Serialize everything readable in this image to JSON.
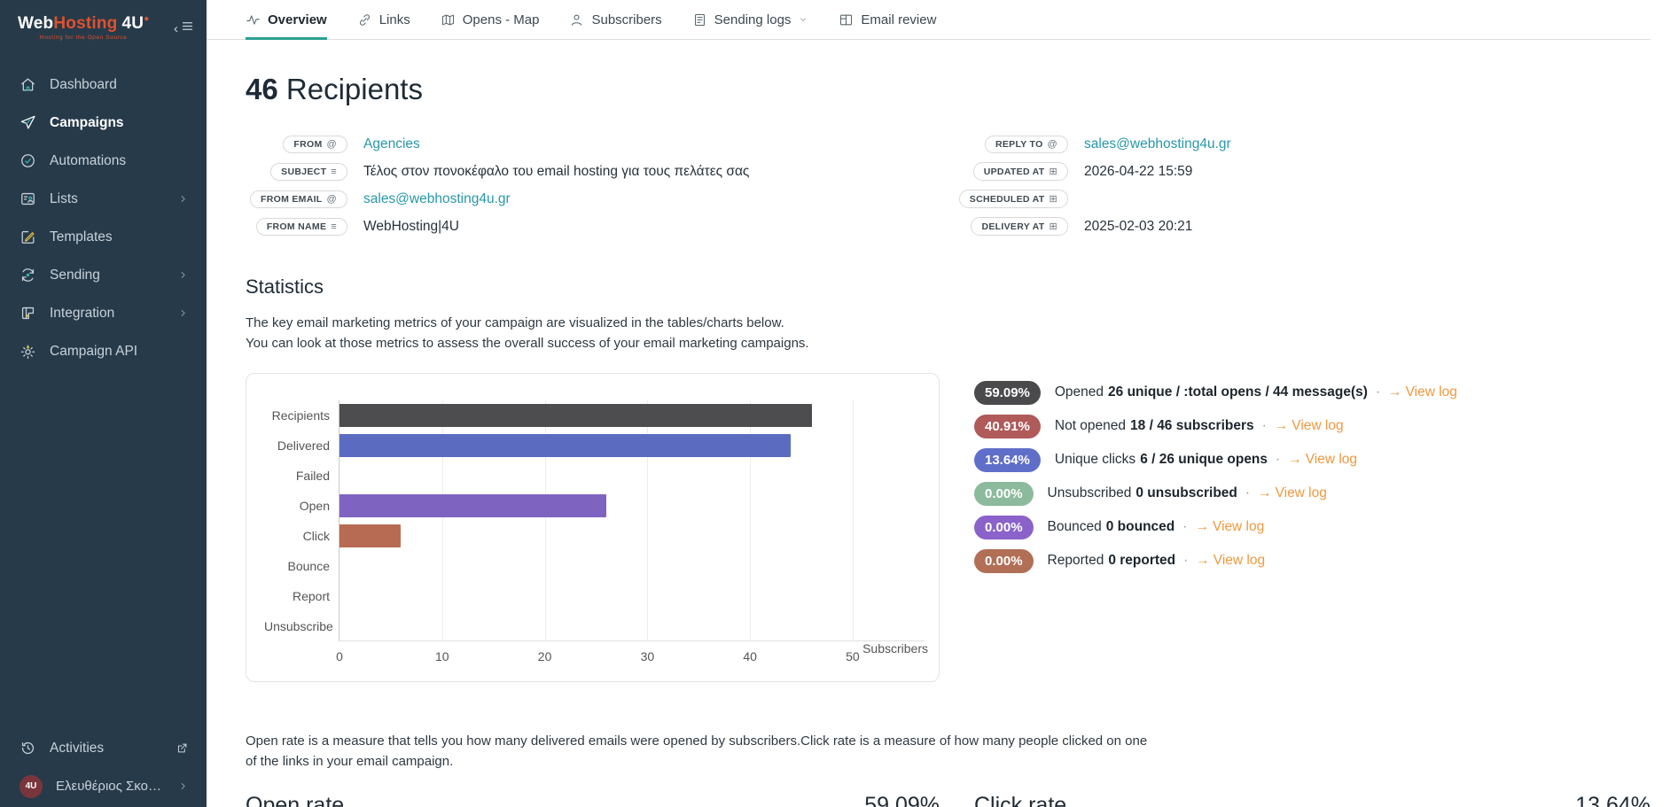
{
  "theme": {
    "accent": "#2aa08f",
    "link_teal": "#2798aa",
    "link_orange": "#f0993e",
    "sidebar_bg": "#263a4a",
    "logo_orange": "#e0512c"
  },
  "sidebar": {
    "logo": {
      "part1": "Web",
      "part2": "Hosting",
      "part3": "4U",
      "tagline": "Hosting for the Open Source"
    },
    "items": [
      {
        "label": "Dashboard",
        "icon": "home-icon",
        "active": false,
        "submenu": false
      },
      {
        "label": "Campaigns",
        "icon": "paper-plane-icon",
        "active": true,
        "submenu": false
      },
      {
        "label": "Automations",
        "icon": "clock-check-icon",
        "active": false,
        "submenu": false
      },
      {
        "label": "Lists",
        "icon": "list-user-icon",
        "active": false,
        "submenu": true
      },
      {
        "label": "Templates",
        "icon": "pencil-square-icon",
        "active": false,
        "submenu": false
      },
      {
        "label": "Sending",
        "icon": "sync-icon",
        "active": false,
        "submenu": true
      },
      {
        "label": "Integration",
        "icon": "integration-icon",
        "active": false,
        "submenu": true
      },
      {
        "label": "Campaign API",
        "icon": "gear-icon",
        "active": false,
        "submenu": false
      }
    ],
    "activities_label": "Activities",
    "user_name": "Ελευθέριος Σκουλάς",
    "avatar_text": "4U"
  },
  "tabs": [
    {
      "label": "Overview",
      "icon": "pulse-icon",
      "active": true,
      "dropdown": false
    },
    {
      "label": "Links",
      "icon": "link-icon",
      "active": false,
      "dropdown": false
    },
    {
      "label": "Opens - Map",
      "icon": "map-icon",
      "active": false,
      "dropdown": false
    },
    {
      "label": "Subscribers",
      "icon": "user-icon",
      "active": false,
      "dropdown": false
    },
    {
      "label": "Sending logs",
      "icon": "file-list-icon",
      "active": false,
      "dropdown": true
    },
    {
      "label": "Email review",
      "icon": "layout-icon",
      "active": false,
      "dropdown": false
    }
  ],
  "header": {
    "count": "46",
    "title": "Recipients"
  },
  "fields_left": [
    {
      "label": "FROM",
      "icon": "at",
      "value": "Agencies",
      "link": true
    },
    {
      "label": "SUBJECT",
      "icon": "lines",
      "value": "Τέλος στον πονοκέφαλο του email hosting για τους πελάτες σας",
      "link": false
    },
    {
      "label": "FROM EMAIL",
      "icon": "at",
      "value": "sales@webhosting4u.gr",
      "link": true
    },
    {
      "label": "FROM NAME",
      "icon": "lines",
      "value": "WebHosting|4U",
      "link": false
    }
  ],
  "fields_right": [
    {
      "label": "REPLY TO",
      "icon": "at",
      "value": "sales@webhosting4u.gr",
      "link": true
    },
    {
      "label": "UPDATED AT",
      "icon": "calendar",
      "value": "2026-04-22 15:59",
      "link": false
    },
    {
      "label": "SCHEDULED AT",
      "icon": "calendar",
      "value": "",
      "link": false
    },
    {
      "label": "DELIVERY AT",
      "icon": "calendar",
      "value": "2025-02-03 20:21",
      "link": false
    }
  ],
  "statistics": {
    "title": "Statistics",
    "desc_line1": "The key email marketing metrics of your campaign are visualized in the tables/charts below.",
    "desc_line2": "You can look at those metrics to assess the overall success of your email marketing campaigns.",
    "rows": [
      {
        "pct": "59.09%",
        "color": "#4a4a4c",
        "prefix": "Opened",
        "bold": "26 unique / :total opens / 44 message(s)",
        "link": "View log"
      },
      {
        "pct": "40.91%",
        "color": "#b05a5a",
        "prefix": "Not opened",
        "bold": "18 / 46 subscribers",
        "link": "View log"
      },
      {
        "pct": "13.64%",
        "color": "#5f6fc9",
        "prefix": "Unique clicks",
        "bold": "6 / 26 unique opens",
        "link": "View log"
      },
      {
        "pct": "0.00%",
        "color": "#8cba9c",
        "prefix": "Unsubscribed",
        "bold": "0 unsubscribed",
        "link": "View log"
      },
      {
        "pct": "0.00%",
        "color": "#8a62c9",
        "prefix": "Bounced",
        "bold": "0 bounced",
        "link": "View log"
      },
      {
        "pct": "0.00%",
        "color": "#b16f56",
        "prefix": "Reported",
        "bold": "0 reported",
        "link": "View log"
      }
    ]
  },
  "chart_data": {
    "type": "bar",
    "orientation": "horizontal",
    "title": "",
    "categories": [
      "Recipients",
      "Delivered",
      "Failed",
      "Open",
      "Click",
      "Bounce",
      "Report",
      "Unsubscribe"
    ],
    "values": [
      46,
      44,
      0,
      26,
      6,
      0,
      0,
      0
    ],
    "colors": [
      "#4d4d4f",
      "#5b6cc0",
      "#999999",
      "#7f63c1",
      "#b76b52",
      "#999999",
      "#999999",
      "#999999"
    ],
    "xlabel": "Subscribers",
    "ylabel": "",
    "xticks": [
      0,
      10,
      20,
      30,
      40,
      50
    ],
    "xlim": [
      0,
      57
    ],
    "grid": true,
    "legend": false
  },
  "footer": {
    "desc": "Open rate is a measure that tells you how many delivered emails were opened by subscribers.Click rate is a measure of how many people clicked on one of the links in your email campaign.",
    "open_rate_label": "Open rate",
    "open_rate_value": "59.09%",
    "click_rate_label": "Click rate",
    "click_rate_value": "13.64%"
  }
}
